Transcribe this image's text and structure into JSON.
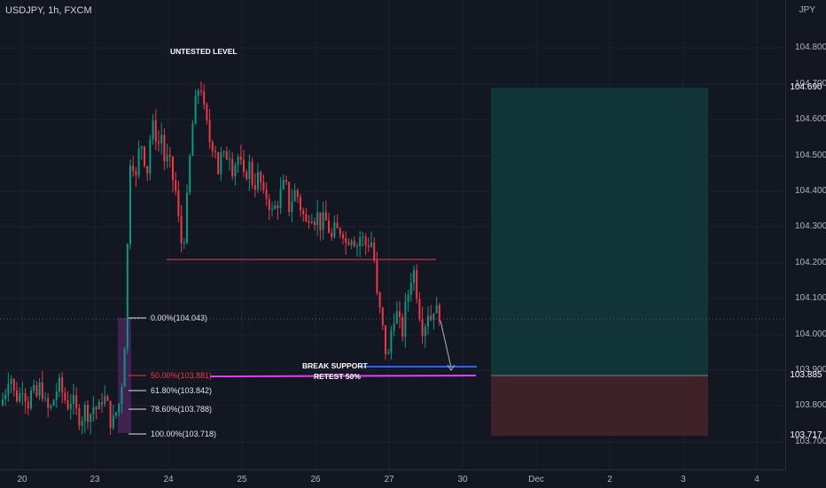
{
  "header": {
    "symbol": "USDJPY, 1h, FXCM",
    "currency": "JPY"
  },
  "price_axis": {
    "ticks": [
      "104.800",
      "104.700",
      "104.600",
      "104.500",
      "104.400",
      "104.300",
      "104.200",
      "104.100",
      "104.000",
      "103.900",
      "103.800",
      "103.700"
    ]
  },
  "time_axis": {
    "ticks": [
      "20",
      "23",
      "24",
      "25",
      "26",
      "27",
      "30",
      "Dec",
      "2",
      "3",
      "4"
    ]
  },
  "price_tags": [
    {
      "label": "104.690",
      "color": "#089981"
    },
    {
      "label": "103.885",
      "color": "#787b86"
    },
    {
      "label": "103.717",
      "color": "#f23645"
    }
  ],
  "fib_labels": [
    {
      "label": "0.00%(104.043)",
      "color": "#e0e3eb"
    },
    {
      "label": "50.00%(103.881)",
      "color": "#f23645"
    },
    {
      "label": "61.80%(103.842)",
      "color": "#e0e3eb"
    },
    {
      "label": "78.60%(103.788)",
      "color": "#e0e3eb"
    },
    {
      "label": "100.00%(103.718)",
      "color": "#e0e3eb"
    }
  ],
  "annotations": {
    "untested": "UNTESTED LEVEL",
    "break_support": "BREAK SUPPORT",
    "retest": "RETEST 50%"
  },
  "chart_data": {
    "type": "candlestick",
    "timeframe": "1h",
    "ylim": [
      103.67,
      104.875
    ],
    "levels": {
      "resistance": 104.21,
      "support": 103.905,
      "retest_50": 103.881,
      "position_take_profit": 104.69,
      "position_entry": 103.885,
      "position_stop": 103.717
    },
    "fibonacci": {
      "0": 104.043,
      "50": 103.881,
      "61.8": 103.842,
      "78.6": 103.788,
      "100": 103.718
    },
    "close_path": [
      [
        0,
        103.8
      ],
      [
        5,
        103.84
      ],
      [
        10,
        103.9
      ],
      [
        15,
        103.83
      ],
      [
        20,
        103.82
      ],
      [
        25,
        103.86
      ],
      [
        30,
        103.8
      ],
      [
        35,
        103.84
      ],
      [
        40,
        103.82
      ],
      [
        45,
        103.86
      ],
      [
        50,
        103.8
      ],
      [
        55,
        103.78
      ],
      [
        60,
        103.82
      ],
      [
        65,
        103.86
      ],
      [
        70,
        103.83
      ],
      [
        75,
        103.8
      ],
      [
        80,
        103.82
      ],
      [
        85,
        103.78
      ],
      [
        90,
        103.76
      ],
      [
        95,
        103.79
      ],
      [
        100,
        103.77
      ],
      [
        105,
        103.8
      ],
      [
        110,
        103.78
      ],
      [
        115,
        103.83
      ],
      [
        120,
        103.8
      ],
      [
        125,
        103.74
      ],
      [
        130,
        103.78
      ],
      [
        134,
        103.81
      ],
      [
        138,
        103.9
      ],
      [
        141,
        104.04
      ],
      [
        145,
        104.49
      ],
      [
        149,
        104.48
      ],
      [
        153,
        104.42
      ],
      [
        157,
        104.55
      ],
      [
        161,
        104.5
      ],
      [
        165,
        104.45
      ],
      [
        169,
        104.56
      ],
      [
        173,
        104.58
      ],
      [
        177,
        104.52
      ],
      [
        181,
        104.56
      ],
      [
        185,
        104.47
      ],
      [
        189,
        104.49
      ],
      [
        193,
        104.44
      ],
      [
        197,
        104.4
      ],
      [
        201,
        104.3
      ],
      [
        205,
        104.23
      ],
      [
        209,
        104.33
      ],
      [
        213,
        104.48
      ],
      [
        217,
        104.6
      ],
      [
        221,
        104.66
      ],
      [
        225,
        104.71
      ],
      [
        229,
        104.62
      ],
      [
        233,
        104.57
      ],
      [
        237,
        104.52
      ],
      [
        241,
        104.54
      ],
      [
        245,
        104.45
      ],
      [
        249,
        104.5
      ],
      [
        253,
        104.48
      ],
      [
        257,
        104.52
      ],
      [
        261,
        104.46
      ],
      [
        265,
        104.48
      ],
      [
        269,
        104.5
      ],
      [
        273,
        104.42
      ],
      [
        277,
        104.45
      ],
      [
        281,
        104.47
      ],
      [
        285,
        104.4
      ],
      [
        289,
        104.44
      ],
      [
        293,
        104.42
      ],
      [
        297,
        104.37
      ],
      [
        301,
        104.39
      ],
      [
        305,
        104.33
      ],
      [
        309,
        104.35
      ],
      [
        313,
        104.37
      ],
      [
        317,
        104.4
      ],
      [
        321,
        104.42
      ],
      [
        325,
        104.35
      ],
      [
        329,
        104.38
      ],
      [
        333,
        104.4
      ],
      [
        337,
        104.36
      ],
      [
        341,
        104.33
      ],
      [
        345,
        104.3
      ],
      [
        349,
        104.35
      ],
      [
        353,
        104.32
      ],
      [
        357,
        104.33
      ],
      [
        361,
        104.3
      ],
      [
        365,
        104.32
      ],
      [
        369,
        104.3
      ],
      [
        373,
        104.26
      ],
      [
        377,
        104.29
      ],
      [
        381,
        104.28
      ],
      [
        385,
        104.3
      ],
      [
        389,
        104.25
      ],
      [
        393,
        104.27
      ],
      [
        397,
        104.28
      ],
      [
        401,
        104.24
      ],
      [
        405,
        104.27
      ],
      [
        409,
        104.26
      ],
      [
        413,
        104.24
      ],
      [
        417,
        104.27
      ],
      [
        421,
        104.21
      ],
      [
        425,
        104.08
      ],
      [
        429,
        104.05
      ],
      [
        433,
        103.96
      ],
      [
        437,
        103.93
      ],
      [
        441,
        104.02
      ],
      [
        445,
        104.07
      ],
      [
        449,
        104.03
      ],
      [
        453,
        104.0
      ],
      [
        457,
        104.08
      ],
      [
        461,
        104.13
      ],
      [
        465,
        104.19
      ],
      [
        469,
        104.12
      ],
      [
        473,
        104.05
      ],
      [
        477,
        104.0
      ],
      [
        481,
        104.07
      ],
      [
        485,
        104.04
      ],
      [
        489,
        104.08
      ],
      [
        493,
        104.05
      ],
      [
        496,
        104.06
      ]
    ]
  }
}
